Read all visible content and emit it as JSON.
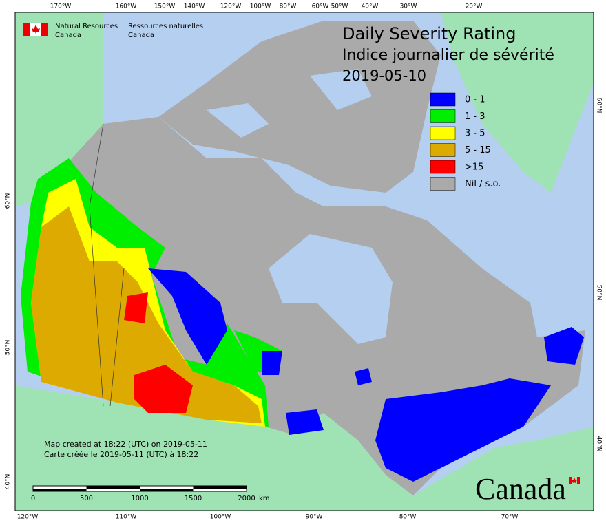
{
  "header": {
    "agency_en": [
      "Natural Resources",
      "Canada"
    ],
    "agency_fr": [
      "Ressources naturelles",
      "Canada"
    ]
  },
  "title": {
    "line1": "Daily Severity Rating",
    "line2": "Indice journalier de sévérité",
    "date": "2019-05-10"
  },
  "legend": [
    {
      "label": "0 - 1",
      "color": "#0000ff"
    },
    {
      "label": "1 - 3",
      "color": "#00ee00"
    },
    {
      "label": "3 - 5",
      "color": "#ffff00"
    },
    {
      "label": "5 - 15",
      "color": "#dcaa00"
    },
    {
      "label": ">15",
      "color": "#ff0000"
    },
    {
      "label": "Nil / s.o.",
      "color": "#aaaaaa"
    }
  ],
  "graticule": {
    "top": [
      "170°W",
      "160°W",
      "150°W",
      "140°W",
      "120°W",
      "100°W",
      "80°W",
      "60°W",
      "50°W",
      "40°W",
      "30°W",
      "20°W"
    ],
    "bottom": [
      "120°W",
      "110°W",
      "100°W",
      "90°W",
      "80°W",
      "70°W"
    ],
    "left": [
      "60°N",
      "50°N",
      "40°N"
    ],
    "right": [
      "60°N",
      "50°N",
      "40°N"
    ]
  },
  "notes": [
    "Map created at 18:22 (UTC) on 2019-05-11",
    "Carte créée le 2019-05-11 (UTC) à 18:22"
  ],
  "scale_bar": {
    "ticks": [
      0,
      500,
      1000,
      1500,
      2000
    ],
    "unit": "km"
  },
  "wordmark": "Canada"
}
